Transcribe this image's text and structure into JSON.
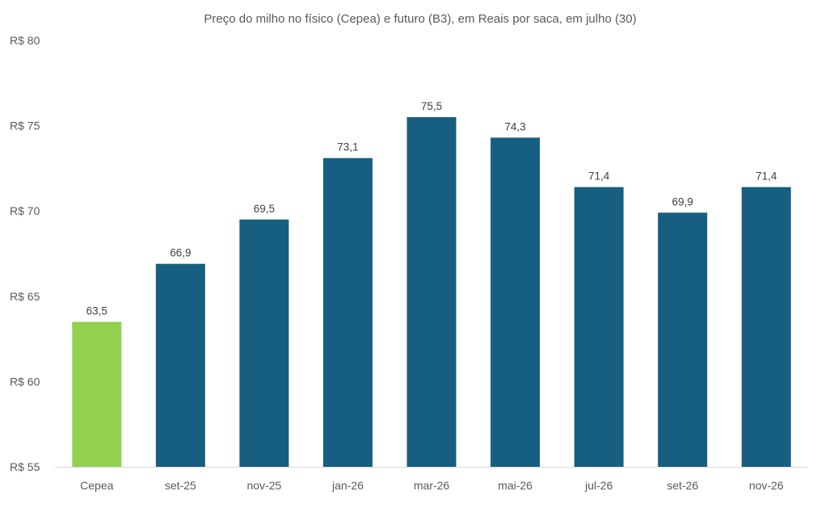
{
  "chart_data": {
    "type": "bar",
    "title": "Preço do milho no físico (Cepea) e futuro (B3), em Reais por saca, em julho (30)",
    "xlabel": "",
    "ylabel": "",
    "ylim": [
      55,
      80
    ],
    "yticks": [
      55,
      60,
      65,
      70,
      75,
      80
    ],
    "ytick_labels": [
      "R$ 55",
      "R$ 60",
      "R$ 65",
      "R$ 70",
      "R$ 75",
      "R$ 80"
    ],
    "categories": [
      "Cepea",
      "set-25",
      "nov-25",
      "jan-26",
      "mar-26",
      "mai-26",
      "jul-26",
      "set-26",
      "nov-26"
    ],
    "values": [
      63.5,
      66.9,
      69.5,
      73.1,
      75.5,
      74.3,
      71.4,
      69.9,
      71.4
    ],
    "data_labels": [
      "63,5",
      "66,9",
      "69,5",
      "73,1",
      "75,5",
      "74,3",
      "71,4",
      "69,9",
      "71,4"
    ],
    "colors": {
      "spot": "#92d050",
      "futures": "#175f80",
      "axis": "#d9d9d9"
    },
    "grid": false,
    "legend": "none"
  }
}
